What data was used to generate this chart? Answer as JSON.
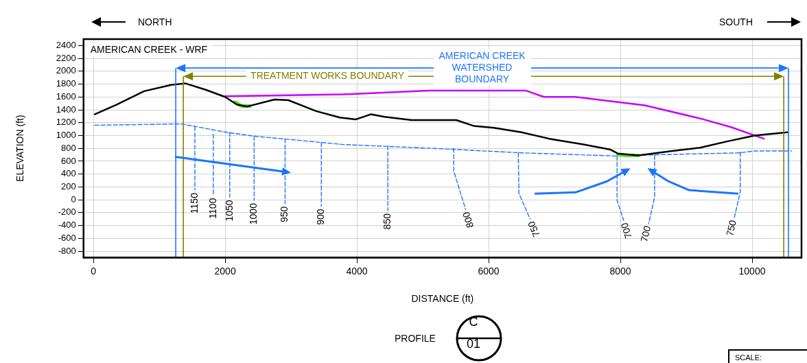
{
  "chart_data": {
    "type": "line",
    "title": "AMERICAN CREEK - WRF",
    "xlabel": "DISTANCE (ft)",
    "ylabel": "ELEVATION (ft)",
    "xlim": [
      -150,
      10750
    ],
    "xticks": [
      0,
      2000,
      4000,
      6000,
      8000,
      10000
    ],
    "ylim": [
      -900,
      2500
    ],
    "yticks": [
      -800,
      -600,
      -400,
      -200,
      0,
      200,
      400,
      600,
      800,
      1000,
      1200,
      1400,
      1600,
      1800,
      2000,
      2200,
      2400
    ],
    "grid": true,
    "legend": false,
    "marker": "none",
    "series": [
      {
        "color": "#000000",
        "x": [
          20,
          350,
          770,
          1190,
          1400,
          1710,
          2000,
          2180,
          2330,
          2370,
          2750,
          2960,
          3380,
          3740,
          3980,
          4210,
          4420,
          4830,
          5250,
          5510,
          5770,
          6080,
          6500,
          6920,
          7440,
          7850,
          7960,
          8270,
          8790,
          9210,
          9630,
          10040,
          10540
        ],
        "values": [
          1330,
          1480,
          1690,
          1790,
          1810,
          1710,
          1600,
          1480,
          1450,
          1460,
          1560,
          1550,
          1380,
          1280,
          1250,
          1330,
          1290,
          1240,
          1240,
          1240,
          1150,
          1120,
          1050,
          950,
          860,
          780,
          720,
          690,
          760,
          810,
          910,
          1000,
          1050
        ]
      },
      {
        "color": "#55dd22",
        "x": [
          2150,
          2250,
          2380
        ],
        "values": [
          1520,
          1460,
          1460
        ]
      },
      {
        "color": "#55dd22",
        "x": [
          7960,
          8100,
          8270
        ],
        "values": [
          700,
          690,
          690
        ]
      },
      {
        "color": "#cc00ff",
        "x": [
          2000,
          3790,
          5100,
          6560,
          6840,
          7320,
          8370,
          9230,
          9680,
          10180
        ],
        "values": [
          1610,
          1640,
          1700,
          1700,
          1600,
          1600,
          1470,
          1260,
          1130,
          950
        ]
      },
      {
        "color": "#1a75ff",
        "line_style": "dashed",
        "x": [
          20,
          1340,
          2020,
          2440,
          2960,
          3480,
          3790,
          5150,
          6510,
          7960,
          8540,
          9810,
          10040,
          10600
        ],
        "values": [
          1160,
          1180,
          1050,
          990,
          940,
          890,
          860,
          800,
          730,
          680,
          700,
          730,
          760,
          760
        ]
      },
      {
        "name": "1150",
        "color": "#1a75ff",
        "line_style": "dashed",
        "x": [
          1540,
          1540
        ],
        "values": [
          1140,
          150
        ]
      },
      {
        "name": "1100",
        "color": "#1a75ff",
        "line_style": "dashed",
        "x": [
          1820,
          1820
        ],
        "values": [
          1020,
          70
        ]
      },
      {
        "name": "1050",
        "color": "#1a75ff",
        "line_style": "dashed",
        "x": [
          2070,
          2070
        ],
        "values": [
          1050,
          40
        ]
      },
      {
        "name": "1000",
        "color": "#1a75ff",
        "line_style": "dashed",
        "x": [
          2440,
          2440
        ],
        "values": [
          990,
          -10
        ]
      },
      {
        "name": "950",
        "color": "#1a75ff",
        "line_style": "dashed",
        "x": [
          2910,
          2910
        ],
        "values": [
          950,
          -60
        ]
      },
      {
        "name": "900",
        "color": "#1a75ff",
        "line_style": "dashed",
        "x": [
          3460,
          3460
        ],
        "values": [
          890,
          -100
        ]
      },
      {
        "name": "850",
        "color": "#1a75ff",
        "line_style": "dashed",
        "x": [
          4470,
          4470
        ],
        "values": [
          840,
          -170
        ]
      },
      {
        "name": "800",
        "color": "#1a75ff",
        "line_style": "dashed",
        "x": [
          5470,
          5470,
          5650
        ],
        "values": [
          800,
          450,
          -150
        ]
      },
      {
        "name": "750",
        "color": "#1a75ff",
        "line_style": "dashed",
        "x": [
          6450,
          6460,
          6630
        ],
        "values": [
          730,
          100,
          -300
        ]
      },
      {
        "name": "700",
        "color": "#1a75ff",
        "line_style": "dashed",
        "x": [
          7950,
          7950,
          8050
        ],
        "values": [
          680,
          -10,
          -320
        ]
      },
      {
        "name": "700",
        "color": "#1a75ff",
        "line_style": "dashed",
        "x": [
          8520,
          8520,
          8430
        ],
        "values": [
          690,
          40,
          -370
        ]
      },
      {
        "name": "750",
        "color": "#1a75ff",
        "line_style": "dashed",
        "x": [
          9820,
          9820,
          9730
        ],
        "values": [
          740,
          120,
          -280
        ]
      }
    ],
    "ref_lines": [
      {
        "axis": "x",
        "value": 1365,
        "color": "#808000"
      },
      {
        "axis": "x",
        "value": 10480,
        "color": "#808000"
      },
      {
        "axis": "x",
        "value": 1250,
        "color": "#1a75ff"
      },
      {
        "axis": "x",
        "value": 10552,
        "color": "#1a75ff"
      },
      {
        "axis": "y",
        "value": 1920,
        "color": "#808000",
        "label": "TREATMENT WORKS BOUNDARY"
      },
      {
        "axis": "y",
        "value": 2050,
        "color": "#1a75ff",
        "label": "AMERICAN CREEK WATERSHED BOUNDARY"
      }
    ],
    "annotations": [
      "NORTH",
      "SOUTH",
      "PROFILE",
      "C",
      "01",
      "SCALE:"
    ]
  }
}
